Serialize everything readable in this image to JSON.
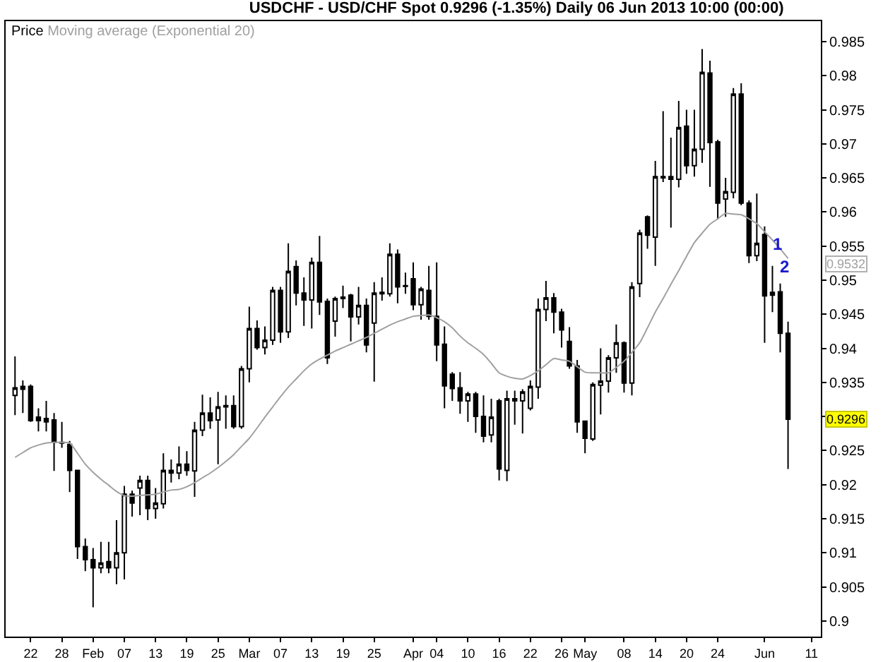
{
  "chart_data": {
    "type": "candlestick",
    "title": "USDCHF - USD/CHF Spot 0.9296 (-1.35%) Daily 06 Jun 2013 10:00 (00:00)",
    "categories": [
      null,
      null,
      "22",
      null,
      null,
      null,
      "28",
      null,
      null,
      null,
      "Feb",
      null,
      null,
      null,
      "07",
      null,
      null,
      null,
      "13",
      null,
      null,
      null,
      "19",
      null,
      null,
      null,
      "25",
      null,
      null,
      null,
      "Mar",
      null,
      null,
      null,
      "07",
      null,
      null,
      null,
      "13",
      null,
      null,
      null,
      "19",
      null,
      null,
      null,
      "25",
      null,
      null,
      null,
      null,
      "Apr",
      null,
      null,
      "04",
      null,
      null,
      null,
      "10",
      null,
      null,
      null,
      "16",
      null,
      null,
      null,
      "22",
      null,
      null,
      null,
      "26",
      null,
      null,
      "May",
      null,
      null,
      null,
      null,
      "08",
      null,
      null,
      null,
      "14",
      null,
      null,
      null,
      "20",
      null,
      null,
      null,
      "24",
      null,
      null,
      null,
      null,
      null,
      "Jun",
      null,
      null,
      null,
      null,
      null,
      "11"
    ],
    "series": [
      {
        "type": "candlestick",
        "name": "Price",
        "color": "#000000",
        "ohlc": [
          [
            0.9331,
            0.9388,
            0.9302,
            0.9342
          ],
          [
            0.934,
            0.9353,
            0.9305,
            0.9344
          ],
          [
            0.9344,
            0.9347,
            0.9292,
            0.9294
          ],
          [
            0.9299,
            0.9312,
            0.9278,
            0.9294
          ],
          [
            0.9297,
            0.9323,
            0.9278,
            0.9292
          ],
          [
            0.9295,
            0.9305,
            0.922,
            0.9262
          ],
          [
            0.9261,
            0.9292,
            0.9254,
            0.9262
          ],
          [
            0.9259,
            0.9264,
            0.9189,
            0.9221
          ],
          [
            0.9221,
            0.9222,
            0.9091,
            0.9109
          ],
          [
            0.9109,
            0.9121,
            0.9073,
            0.909
          ],
          [
            0.909,
            0.9107,
            0.902,
            0.9078
          ],
          [
            0.9078,
            0.9116,
            0.907,
            0.9085
          ],
          [
            0.9087,
            0.9116,
            0.907,
            0.9078
          ],
          [
            0.9078,
            0.9148,
            0.9054,
            0.91
          ],
          [
            0.91,
            0.9198,
            0.9061,
            0.9186
          ],
          [
            0.9186,
            0.9191,
            0.9153,
            0.9173
          ],
          [
            0.9195,
            0.9213,
            0.9155,
            0.9206
          ],
          [
            0.9206,
            0.9213,
            0.9148,
            0.9165
          ],
          [
            0.9165,
            0.9195,
            0.915,
            0.9173
          ],
          [
            0.9172,
            0.9246,
            0.9165,
            0.9221
          ],
          [
            0.9221,
            0.9237,
            0.9203,
            0.9217
          ],
          [
            0.9217,
            0.9256,
            0.9208,
            0.923
          ],
          [
            0.923,
            0.9249,
            0.9213,
            0.9221
          ],
          [
            0.922,
            0.9292,
            0.9182,
            0.928
          ],
          [
            0.928,
            0.9332,
            0.9271,
            0.9305
          ],
          [
            0.9305,
            0.9328,
            0.9282,
            0.9294
          ],
          [
            0.9295,
            0.9336,
            0.923,
            0.9314
          ],
          [
            0.9316,
            0.9331,
            0.9282,
            0.9314
          ],
          [
            0.9316,
            0.9331,
            0.9282,
            0.9285
          ],
          [
            0.9285,
            0.9374,
            0.9282,
            0.937
          ],
          [
            0.937,
            0.9461,
            0.935,
            0.9429
          ],
          [
            0.9429,
            0.9441,
            0.9398,
            0.9401
          ],
          [
            0.9401,
            0.9432,
            0.9391,
            0.9412
          ],
          [
            0.9412,
            0.949,
            0.9405,
            0.9485
          ],
          [
            0.9485,
            0.949,
            0.9408,
            0.9424
          ],
          [
            0.9424,
            0.9554,
            0.9415,
            0.9513
          ],
          [
            0.952,
            0.9529,
            0.9463,
            0.9481
          ],
          [
            0.9481,
            0.9504,
            0.9433,
            0.9471
          ],
          [
            0.9471,
            0.9533,
            0.9429,
            0.9526
          ],
          [
            0.9526,
            0.9565,
            0.9449,
            0.9468
          ],
          [
            0.9469,
            0.9473,
            0.9377,
            0.9386
          ],
          [
            0.944,
            0.9476,
            0.9417,
            0.9473
          ],
          [
            0.9473,
            0.9492,
            0.9459,
            0.9475
          ],
          [
            0.9478,
            0.948,
            0.941,
            0.9446
          ],
          [
            0.9446,
            0.949,
            0.9435,
            0.9463
          ],
          [
            0.9463,
            0.9473,
            0.9394,
            0.9405
          ],
          [
            0.9437,
            0.9497,
            0.9351,
            0.9481
          ],
          [
            0.948,
            0.9504,
            0.947,
            0.9482
          ],
          [
            0.948,
            0.9554,
            0.9476,
            0.9538
          ],
          [
            0.9538,
            0.9545,
            0.9466,
            0.949
          ],
          [
            0.9492,
            0.9511,
            0.948,
            0.9491
          ],
          [
            0.9502,
            0.9526,
            0.9456,
            0.9464
          ],
          [
            0.9464,
            0.949,
            0.9442,
            0.9487
          ],
          [
            0.9485,
            0.9521,
            0.9442,
            0.9447
          ],
          [
            0.9447,
            0.9526,
            0.9381,
            0.9405
          ],
          [
            0.9406,
            0.9432,
            0.9312,
            0.9345
          ],
          [
            0.9362,
            0.9365,
            0.9323,
            0.9341
          ],
          [
            0.9342,
            0.9365,
            0.9304,
            0.9323
          ],
          [
            0.9323,
            0.9336,
            0.9292,
            0.9333
          ],
          [
            0.9333,
            0.9336,
            0.9276,
            0.93
          ],
          [
            0.93,
            0.9331,
            0.9262,
            0.9271
          ],
          [
            0.9273,
            0.9326,
            0.9262,
            0.9299
          ],
          [
            0.9323,
            0.9326,
            0.9206,
            0.9223
          ],
          [
            0.9221,
            0.9338,
            0.9205,
            0.9326
          ],
          [
            0.9326,
            0.9338,
            0.9288,
            0.9323
          ],
          [
            0.9323,
            0.934,
            0.9275,
            0.9336
          ],
          [
            0.9312,
            0.9353,
            0.9309,
            0.9344
          ],
          [
            0.9343,
            0.9473,
            0.9326,
            0.9457
          ],
          [
            0.9457,
            0.9499,
            0.944,
            0.9474
          ],
          [
            0.9474,
            0.9481,
            0.9422,
            0.9453
          ],
          [
            0.9453,
            0.9458,
            0.9401,
            0.9427
          ],
          [
            0.941,
            0.9431,
            0.937,
            0.9374
          ],
          [
            0.9374,
            0.9383,
            0.9276,
            0.9292
          ],
          [
            0.9293,
            0.9294,
            0.9246,
            0.9268
          ],
          [
            0.9267,
            0.935,
            0.9264,
            0.9347
          ],
          [
            0.9346,
            0.94,
            0.9303,
            0.9352
          ],
          [
            0.9352,
            0.939,
            0.9335,
            0.9386
          ],
          [
            0.9386,
            0.9435,
            0.9364,
            0.9408
          ],
          [
            0.9408,
            0.941,
            0.9335,
            0.9349
          ],
          [
            0.9349,
            0.9497,
            0.9331,
            0.949
          ],
          [
            0.9495,
            0.9574,
            0.9475,
            0.9569
          ],
          [
            0.9593,
            0.9595,
            0.9546,
            0.9566
          ],
          [
            0.9563,
            0.9675,
            0.9521,
            0.9652
          ],
          [
            0.965,
            0.9748,
            0.9644,
            0.9652
          ],
          [
            0.9652,
            0.9709,
            0.9577,
            0.9648
          ],
          [
            0.9648,
            0.9763,
            0.9636,
            0.9724
          ],
          [
            0.9726,
            0.975,
            0.9656,
            0.9668
          ],
          [
            0.9668,
            0.975,
            0.9652,
            0.9692
          ],
          [
            0.9692,
            0.9839,
            0.9672,
            0.9805
          ],
          [
            0.9804,
            0.9822,
            0.9637,
            0.9702
          ],
          [
            0.9703,
            0.9706,
            0.9589,
            0.9613
          ],
          [
            0.9619,
            0.965,
            0.9593,
            0.963
          ],
          [
            0.9629,
            0.9782,
            0.962,
            0.9773
          ],
          [
            0.9773,
            0.9789,
            0.961,
            0.9613
          ],
          [
            0.9613,
            0.9617,
            0.9525,
            0.9536
          ],
          [
            0.9536,
            0.9627,
            0.9528,
            0.9554
          ],
          [
            0.9567,
            0.9579,
            0.9408,
            0.9477
          ],
          [
            0.9478,
            0.9521,
            0.9453,
            0.9482
          ],
          [
            0.9483,
            0.9495,
            0.9394,
            0.9422
          ],
          [
            0.9422,
            0.9439,
            0.9223,
            0.9296
          ],
          null,
          null,
          null
        ]
      },
      {
        "type": "line",
        "name": "Moving average (Exponential 20)",
        "color": "#a0a0a0",
        "values": [
          0.924,
          0.9247,
          0.9254,
          0.9258,
          0.9261,
          0.9262,
          0.9262,
          0.9261,
          0.9246,
          0.923,
          0.9218,
          0.9208,
          0.9199,
          0.919,
          0.9184,
          0.9183,
          0.9184,
          0.9185,
          0.9186,
          0.9189,
          0.9192,
          0.9193,
          0.9197,
          0.9203,
          0.921,
          0.9217,
          0.9225,
          0.9234,
          0.9244,
          0.9256,
          0.9268,
          0.9283,
          0.9299,
          0.9314,
          0.9329,
          0.9343,
          0.9355,
          0.9367,
          0.9377,
          0.9384,
          0.939,
          0.9396,
          0.9401,
          0.9406,
          0.9411,
          0.9416,
          0.9422,
          0.9428,
          0.9434,
          0.9439,
          0.9443,
          0.9447,
          0.9448,
          0.9449,
          0.9445,
          0.9439,
          0.943,
          0.9418,
          0.9408,
          0.94,
          0.9391,
          0.9378,
          0.9364,
          0.9359,
          0.9356,
          0.9355,
          0.936,
          0.9367,
          0.9376,
          0.9385,
          0.9383,
          0.9381,
          0.9373,
          0.9365,
          0.9364,
          0.9364,
          0.9364,
          0.9372,
          0.9381,
          0.9394,
          0.9408,
          0.943,
          0.9453,
          0.9473,
          0.9494,
          0.9514,
          0.9535,
          0.9555,
          0.9569,
          0.9582,
          0.959,
          0.9598,
          0.9597,
          0.9596,
          0.959,
          0.9583,
          0.9571,
          0.9559,
          0.9546,
          0.9532,
          null,
          null,
          null
        ]
      }
    ],
    "ylim": [
      0.8977,
      0.988
    ],
    "yticks": [
      0.9,
      0.905,
      0.91,
      0.915,
      0.92,
      0.925,
      {
        "value": 0.93,
        "label": null
      },
      0.935,
      0.94,
      0.945,
      0.95,
      0.955,
      0.96,
      0.965,
      0.97,
      0.975,
      0.98,
      0.985
    ],
    "annotations": [
      "1",
      "2",
      "0.9296",
      "0.9532"
    ],
    "legend": "top left",
    "grid": false
  }
}
